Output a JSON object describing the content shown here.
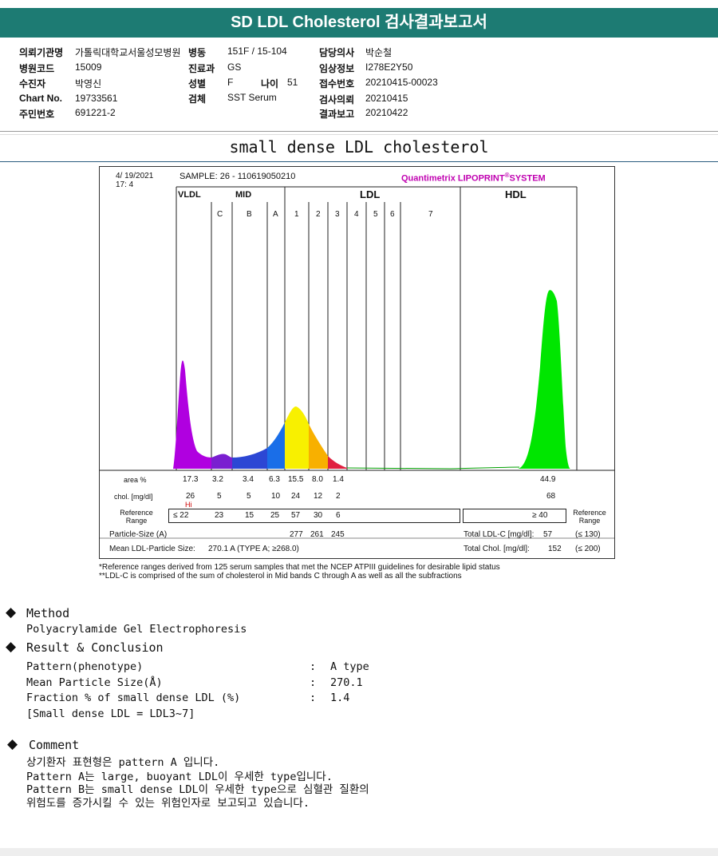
{
  "header": {
    "title": "SD LDL Cholesterol 검사결과보고서"
  },
  "patient": {
    "fields": [
      {
        "label": "의뢰기관명",
        "value": "가톨릭대학교서울성모병원"
      },
      {
        "label": "병동",
        "value": "151F / 15-104"
      },
      {
        "label": "담당의사",
        "value": "박순철"
      },
      {
        "label": "병원코드",
        "value": "15009"
      },
      {
        "label": "진료과",
        "value": "GS"
      },
      {
        "label": "임상정보",
        "value": "I278E2Y50"
      },
      {
        "label": "수진자",
        "value": "박영신"
      },
      {
        "label": "성별",
        "value": "F"
      },
      {
        "label": "나이",
        "value": "51"
      },
      {
        "label": "접수번호",
        "value": "20210415-00023"
      },
      {
        "label": "Chart No.",
        "value": "19733561"
      },
      {
        "label": "검체",
        "value": "SST Serum"
      },
      {
        "label": "검사의뢰",
        "value": "20210415"
      },
      {
        "label": "주민번호",
        "value": "691221-2"
      },
      {
        "label": "결과보고",
        "value": "20210422"
      }
    ]
  },
  "section_title": "small dense LDL cholesterol",
  "lipoprint": {
    "date": "4/ 19/2021",
    "time": "17:  4",
    "sample": "SAMPLE:   26 - 110619050210",
    "system": "Quantimetrix LIPOPRINT",
    "system_sup": "®",
    "system_suffix": "SYSTEM",
    "groups": {
      "vldl": "VLDL",
      "mid": "MID",
      "ldl": "LDL",
      "hdl": "HDL"
    },
    "bands": [
      "C",
      "B",
      "A",
      "1",
      "2",
      "3",
      "4",
      "5",
      "6",
      "7"
    ],
    "row_labels": {
      "area": "area %",
      "chol": "chol. [mg/dl]",
      "ref": "Reference Range",
      "particle": "Particle-Size (A)",
      "mean": "Mean LDL-Particle Size:"
    },
    "area": [
      "17.3",
      "3.2",
      "3.4",
      "6.3",
      "15.5",
      "8.0",
      "1.4"
    ],
    "area_hdl": "44.9",
    "chol": [
      "26",
      "5",
      "5",
      "10",
      "24",
      "12",
      "2"
    ],
    "chol_hdl": "68",
    "hi_flag": "Hi",
    "ref": [
      "≤ 22",
      "23",
      "15",
      "25",
      "57",
      "30",
      "6"
    ],
    "ref_hdl": "≥ 40",
    "ref_right_label": "Reference Range",
    "particle_sizes": [
      "277",
      "261",
      "245"
    ],
    "mean_value": "270.1  A    (TYPE A; ≥268.0)",
    "total_ldlc_label": "Total LDL-C [mg/dl]:",
    "total_ldlc_value": "57",
    "total_ldlc_ref": "(≤ 130)",
    "total_chol_label": "Total Chol. [mg/dl]:",
    "total_chol_value": "152",
    "total_chol_ref": "(≤ 200)"
  },
  "footnotes": [
    "*Reference ranges derived from 125 serum samples that met the NCEP ATPIII guidelines for desirable lipid status",
    "**LDL-C is comprised of the sum of cholesterol in Mid bands C through A as well as all the subfractions"
  ],
  "method": {
    "title": "Method",
    "text": "Polyacrylamide Gel Electrophoresis"
  },
  "result": {
    "title": "Result & Conclusion",
    "rows": [
      {
        "label": "Pattern(phenotype)",
        "value": "A type"
      },
      {
        "label": "Mean Particle Size(Å)",
        "value": "270.1"
      },
      {
        "label": "Fraction % of small dense LDL (%)",
        "value": "1.4"
      }
    ],
    "note": "[Small dense LDL = LDL3~7]",
    "colon": ":"
  },
  "comment": {
    "title": "Comment",
    "lines": [
      "상기환자 표현형은 pattern A 입니다.",
      "Pattern A는 large, buoyant LDL이 우세한 type입니다.",
      "Pattern B는 small dense LDL이 우세한 type으로 심혈관 질환의",
      "위험도를 증가시킬 수 있는 위험인자로 보고되고 있습니다."
    ]
  },
  "colors": {
    "header_bg": "#1d7b73",
    "vldl": "#b000e0",
    "mid_c": "#7a1fd0",
    "mid_b": "#2c47d4",
    "mid_a": "#1a6ee8",
    "ldl1": "#f8f000",
    "ldl2": "#f8b000",
    "ldl3": "#e02040",
    "hdl": "#00e600",
    "system": "#c000b0",
    "hi": "#cc0000"
  }
}
